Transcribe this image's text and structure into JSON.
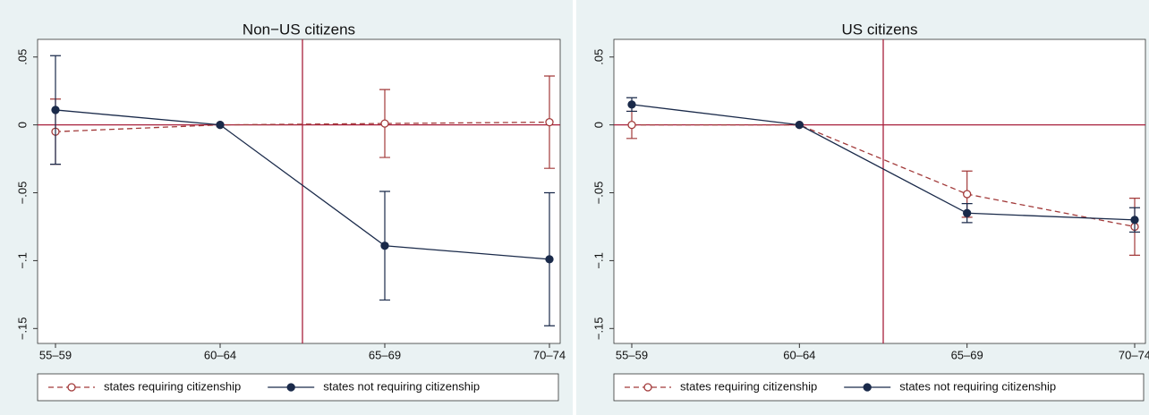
{
  "chart_data": [
    {
      "type": "line",
      "title": "Non−US citizens",
      "categories": [
        "55–59",
        "60–64",
        "65–69",
        "70–74"
      ],
      "series": [
        {
          "name": "states requiring citizenship",
          "color": "#a23a3a",
          "dashed": true,
          "marker": "hollow",
          "values": [
            -0.005,
            0,
            0.001,
            0.002
          ],
          "errors": [
            0.024,
            null,
            0.025,
            0.034
          ]
        },
        {
          "name": "states not requiring citizenship",
          "color": "#1a2a4a",
          "dashed": false,
          "marker": "filled",
          "values": [
            0.011,
            0,
            -0.089,
            -0.099
          ],
          "errors": [
            0.04,
            null,
            0.04,
            0.049
          ]
        }
      ],
      "ylim": [
        -0.161,
        0.063
      ],
      "yticks": [
        {
          "value": 0.05,
          "label": ".05"
        },
        0,
        {
          "value": -0.05,
          "label": "−.05"
        },
        {
          "value": -0.1,
          "label": "−.1"
        },
        {
          "value": -0.15,
          "label": "−.15"
        }
      ],
      "hline": 0
    },
    {
      "type": "line",
      "title": "US citizens",
      "categories": [
        "55–59",
        "60–64",
        "65–69",
        "70–74"
      ],
      "series": [
        {
          "name": "states requiring citizenship",
          "color": "#a23a3a",
          "dashed": true,
          "marker": "hollow",
          "values": [
            0,
            0,
            -0.051,
            -0.075
          ],
          "errors": [
            0.01,
            null,
            0.017,
            0.021
          ]
        },
        {
          "name": "states not requiring citizenship",
          "color": "#1a2a4a",
          "dashed": false,
          "marker": "filled",
          "values": [
            0.015,
            0,
            -0.065,
            -0.07
          ],
          "errors": [
            0.005,
            null,
            0.007,
            0.009
          ]
        }
      ],
      "ylim": [
        -0.161,
        0.063
      ],
      "yticks": [
        {
          "value": 0.05,
          "label": ".05"
        },
        0,
        {
          "value": -0.05,
          "label": "−.05"
        },
        {
          "value": -0.1,
          "label": "−.1"
        },
        {
          "value": -0.15,
          "label": "−.15"
        }
      ],
      "hline": 0
    }
  ]
}
